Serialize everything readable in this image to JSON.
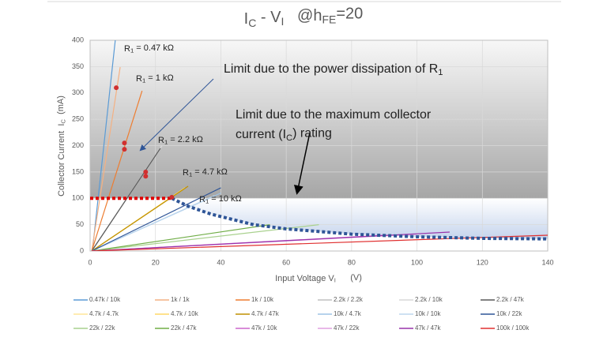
{
  "chart_data": {
    "type": "line",
    "title": [
      {
        "t": "I"
      },
      {
        "t": "C",
        "sub": true
      },
      {
        "t": " - V"
      },
      {
        "t": "I",
        "sub": true
      },
      {
        "t": "   @h"
      },
      {
        "t": "FE",
        "sub": true
      },
      {
        "t": "=20"
      }
    ],
    "xlabel": [
      {
        "t": "Input Voltage V"
      },
      {
        "t": "I",
        "sub": true
      },
      {
        "t": "      (V)"
      }
    ],
    "ylabel": [
      {
        "t": "Collector Current  I"
      },
      {
        "t": "C",
        "sub": true
      },
      {
        "t": "  (mA)"
      }
    ],
    "xlim": [
      0,
      140
    ],
    "xticks": [
      0,
      20,
      40,
      60,
      80,
      100,
      120,
      140
    ],
    "ylim": [
      0,
      400
    ],
    "yticks": [
      0,
      50,
      100,
      150,
      200,
      250,
      300,
      350,
      400
    ],
    "series": [
      {
        "name": "0.47k / 10k",
        "color": "#5b9bd5",
        "x": [
          0.7,
          7.7
        ],
        "values": [
          0,
          400
        ]
      },
      {
        "name": "1k / 1k",
        "color": "#f4b183",
        "x": [
          0.5,
          9.2
        ],
        "values": [
          0,
          349
        ]
      },
      {
        "name": "1k / 10k",
        "color": "#ed7d31",
        "x": [
          0.5,
          15.9
        ],
        "values": [
          0,
          304
        ]
      },
      {
        "name": "2.2k / 2.2k",
        "color": "#bfbfbf",
        "x": [
          0.5,
          21
        ],
        "values": [
          0,
          190
        ]
      },
      {
        "name": "2.2k / 10k",
        "color": "#d9d9d9",
        "x": [
          0.5,
          22
        ],
        "values": [
          0,
          200
        ]
      },
      {
        "name": "2.2k / 47k",
        "color": "#595959",
        "x": [
          0.5,
          21.5
        ],
        "values": [
          0,
          195
        ]
      },
      {
        "name": "4.7k / 4.7k",
        "color": "#ffe699",
        "x": [
          0.5,
          28
        ],
        "values": [
          0,
          115
        ]
      },
      {
        "name": "4.7k / 10k",
        "color": "#ffd966",
        "x": [
          0.5,
          29
        ],
        "values": [
          0,
          120
        ]
      },
      {
        "name": "4.7k / 47k",
        "color": "#bf9000",
        "x": [
          0.5,
          30
        ],
        "values": [
          0,
          123
        ]
      },
      {
        "name": "10k / 4.7k",
        "color": "#9dc3e6",
        "x": [
          0.5,
          40
        ],
        "values": [
          0,
          110
        ]
      },
      {
        "name": "10k / 10k",
        "color": "#bdd7ee",
        "x": [
          0.5,
          38
        ],
        "values": [
          0,
          105
        ]
      },
      {
        "name": "10k / 22k",
        "color": "#2f5597",
        "x": [
          0.5,
          40
        ],
        "values": [
          0,
          120
        ]
      },
      {
        "name": "22k / 22k",
        "color": "#a9d18e",
        "x": [
          0.5,
          70
        ],
        "values": [
          0,
          50
        ]
      },
      {
        "name": "22k / 47k",
        "color": "#70ad47",
        "x": [
          0.5,
          55
        ],
        "values": [
          0,
          50
        ]
      },
      {
        "name": "47k / 10k",
        "color": "#cc66cc",
        "x": [
          0.5,
          90
        ],
        "values": [
          0,
          30
        ]
      },
      {
        "name": "47k / 22k",
        "color": "#e0a0e0",
        "x": [
          0.5,
          100
        ],
        "values": [
          0,
          32
        ]
      },
      {
        "name": "47k / 47k",
        "color": "#9933aa",
        "x": [
          0.5,
          110
        ],
        "values": [
          0,
          36
        ]
      },
      {
        "name": "100k / 100k",
        "color": "#e03030",
        "x": [
          0.5,
          140
        ],
        "values": [
          0,
          30
        ]
      }
    ],
    "current_limit": {
      "color": "#e00000",
      "x": [
        0,
        25
      ],
      "values": [
        100,
        100
      ]
    },
    "power_limit": {
      "color": "#2f5597",
      "x": [
        25,
        30,
        37,
        50,
        60,
        80,
        100,
        120,
        140
      ],
      "values": [
        100,
        85,
        70,
        50,
        42,
        32,
        27,
        24,
        23
      ]
    },
    "markers": {
      "color": "#d03030",
      "x": [
        8,
        10.5,
        10.5,
        17,
        17,
        25
      ],
      "values": [
        310,
        205,
        193,
        150,
        142,
        102
      ]
    },
    "r_labels": [
      [
        {
          "t": "R"
        },
        {
          "t": "1",
          "sub": true
        },
        {
          "t": " = 0.47 kΩ"
        }
      ],
      [
        {
          "t": "R"
        },
        {
          "t": "1",
          "sub": true
        },
        {
          "t": " = 1 kΩ"
        }
      ],
      [
        {
          "t": "R"
        },
        {
          "t": "1",
          "sub": true
        },
        {
          "t": " = 2.2 kΩ"
        }
      ],
      [
        {
          "t": "R"
        },
        {
          "t": "1",
          "sub": true
        },
        {
          "t": " = 4.7 kΩ"
        }
      ],
      [
        {
          "t": "R"
        },
        {
          "t": "1",
          "sub": true
        },
        {
          "t": " = 10 kΩ"
        }
      ]
    ],
    "annotations": [
      [
        {
          "t": "Limit due to the power dissipation of R"
        },
        {
          "t": "1",
          "sub": true
        }
      ],
      [
        {
          "t": "Limit due to the maximum collector"
        }
      ],
      [
        {
          "t": "current (I"
        },
        {
          "t": "C",
          "sub": true
        },
        {
          "t": ") rating"
        }
      ]
    ]
  }
}
